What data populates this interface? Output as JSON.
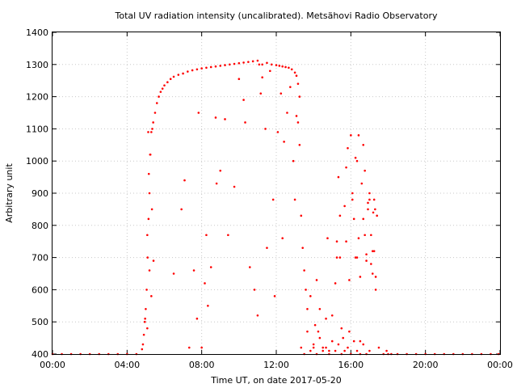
{
  "chart_data": {
    "type": "scatter",
    "title": "Total UV radiation intensity (uncalibrated). Metsähovi Radio Observatory",
    "xlabel": "Time UT, on date 2017-05-20",
    "ylabel": "Arbitrary unit",
    "xlim": [
      "00:00",
      "24:00"
    ],
    "ylim": [
      400,
      1400
    ],
    "x_ticks": [
      "00:00",
      "04:00",
      "08:00",
      "12:00",
      "16:00",
      "20:00",
      "00:00"
    ],
    "y_ticks": [
      "400",
      "500",
      "600",
      "700",
      "800",
      "900",
      "1000",
      "1100",
      "1200",
      "1300",
      "1400"
    ],
    "grid": true,
    "marker_color": "#ff0000",
    "series": [
      {
        "x": [
          "00:00",
          "00:30",
          "01:00",
          "01:30",
          "02:00",
          "02:30",
          "03:00",
          "03:30",
          "04:00",
          "04:30",
          "04:48",
          "04:51",
          "04:54",
          "04:57",
          "05:00",
          "05:03",
          "05:06",
          "05:09",
          "05:12",
          "05:15",
          "05:18",
          "05:21",
          "05:24",
          "05:30",
          "05:36",
          "05:42",
          "05:48",
          "05:54",
          "06:00",
          "06:10",
          "06:20",
          "06:30",
          "06:45",
          "07:00",
          "07:15",
          "07:30",
          "07:45",
          "08:00",
          "08:15",
          "08:30",
          "08:45",
          "09:00",
          "09:15",
          "09:30",
          "09:45",
          "10:00",
          "10:15",
          "10:30",
          "10:45",
          "11:00",
          "11:15",
          "11:30",
          "11:45",
          "12:00",
          "12:10",
          "12:20",
          "12:30",
          "12:40",
          "12:50",
          "13:00",
          "13:05",
          "13:10",
          "13:15",
          "04:58",
          "05:05",
          "05:10",
          "05:14",
          "05:20",
          "05:25",
          "05:05",
          "05:12",
          "05:18",
          "05:08",
          "06:30",
          "06:55",
          "07:05",
          "07:20",
          "07:35",
          "07:45",
          "07:50",
          "08:00",
          "08:10",
          "08:15",
          "08:20",
          "08:30",
          "08:45",
          "08:48",
          "09:00",
          "09:15",
          "09:25",
          "09:45",
          "10:00",
          "10:15",
          "10:20",
          "10:35",
          "10:50",
          "11:00",
          "11:05",
          "11:10",
          "11:15",
          "11:25",
          "11:30",
          "11:40",
          "11:50",
          "11:55",
          "12:05",
          "12:15",
          "12:20",
          "12:25",
          "12:35",
          "12:45",
          "12:55",
          "13:00",
          "13:05",
          "13:10",
          "13:15",
          "13:20",
          "13:25",
          "13:30",
          "13:35",
          "13:40",
          "13:50",
          "14:00",
          "14:05",
          "14:10",
          "14:15",
          "14:20",
          "14:30",
          "14:40",
          "14:45",
          "14:50",
          "15:00",
          "15:10",
          "15:15",
          "15:20",
          "15:25",
          "15:30",
          "15:40",
          "15:45",
          "15:50",
          "15:55",
          "16:00",
          "16:05",
          "16:10",
          "16:15",
          "16:20",
          "16:25",
          "16:30",
          "16:35",
          "16:40",
          "16:45",
          "16:50",
          "16:55",
          "17:00",
          "17:05",
          "17:10",
          "17:12",
          "17:15",
          "17:18",
          "17:20",
          "17:24",
          "15:15",
          "15:25",
          "15:35",
          "15:45",
          "15:55",
          "16:05",
          "16:15",
          "16:20",
          "16:25",
          "16:30",
          "16:40",
          "16:45",
          "16:50",
          "16:55",
          "17:00",
          "17:05",
          "17:10",
          "17:15",
          "17:20",
          "13:20",
          "13:30",
          "13:40",
          "13:50",
          "14:00",
          "14:10",
          "14:20",
          "14:30",
          "14:40",
          "14:50",
          "15:00",
          "15:10",
          "15:20",
          "15:30",
          "15:40",
          "15:50",
          "16:00",
          "16:10",
          "16:20",
          "16:30",
          "16:40",
          "16:50",
          "17:00",
          "17:30",
          "17:45",
          "17:55",
          "18:00",
          "18:10",
          "18:30",
          "19:00",
          "19:30",
          "20:00",
          "20:30",
          "21:00",
          "21:30",
          "22:00",
          "22:30",
          "23:00",
          "23:30",
          "23:55"
        ],
        "y": [
          400,
          400,
          400,
          400,
          400,
          400,
          400,
          400,
          400,
          400,
          415,
          430,
          460,
          500,
          540,
          600,
          700,
          820,
          900,
          1020,
          1090,
          1100,
          1120,
          1150,
          1180,
          1200,
          1215,
          1225,
          1235,
          1245,
          1255,
          1262,
          1268,
          1272,
          1278,
          1282,
          1285,
          1288,
          1290,
          1292,
          1294,
          1296,
          1298,
          1300,
          1302,
          1304,
          1306,
          1308,
          1310,
          1312,
          1300,
          1305,
          1300,
          1298,
          1296,
          1294,
          1292,
          1290,
          1285,
          1275,
          1265,
          1240,
          1200,
          510,
          770,
          960,
          1020,
          850,
          690,
          480,
          660,
          580,
          1090,
          650,
          850,
          940,
          420,
          660,
          510,
          1150,
          420,
          620,
          770,
          550,
          670,
          1135,
          930,
          970,
          1130,
          770,
          920,
          1255,
          1190,
          1120,
          670,
          600,
          520,
          1300,
          1210,
          1260,
          1100,
          730,
          1280,
          880,
          580,
          1090,
          1210,
          760,
          1060,
          1150,
          1230,
          1000,
          880,
          1140,
          1120,
          1050,
          830,
          730,
          660,
          600,
          540,
          580,
          420,
          490,
          630,
          470,
          540,
          420,
          510,
          760,
          410,
          520,
          620,
          700,
          950,
          830,
          480,
          860,
          750,
          1040,
          470,
          1080,
          880,
          820,
          700,
          1000,
          760,
          640,
          930,
          1050,
          770,
          690,
          870,
          900,
          680,
          720,
          840,
          880,
          850,
          600,
          830,
          750,
          700,
          450,
          980,
          630,
          900,
          1010,
          700,
          1080,
          440,
          820,
          970,
          710,
          850,
          880,
          770,
          650,
          720,
          640,
          420,
          400,
          470,
          410,
          430,
          400,
          450,
          410,
          420,
          400,
          440,
          410,
          430,
          400,
          410,
          420,
          400,
          440,
          410,
          400,
          430,
          400,
          410,
          420,
          400,
          410,
          400,
          400,
          400,
          400,
          400,
          400,
          400,
          400,
          400,
          400,
          400,
          400,
          400,
          400
        ]
      }
    ]
  }
}
